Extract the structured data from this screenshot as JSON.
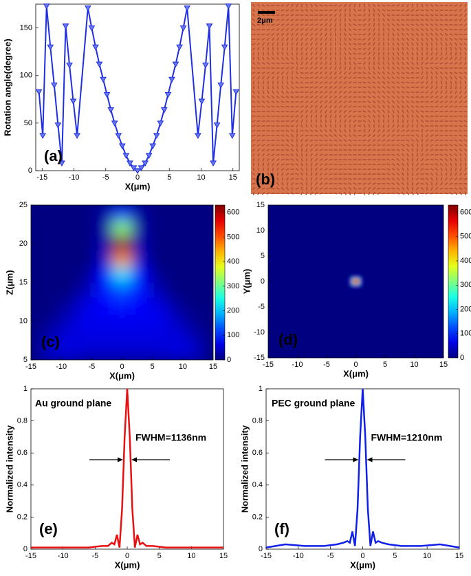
{
  "chart_data": [
    {
      "type": "line",
      "panel_label": "(a)",
      "xlabel": "X(μm)",
      "ylabel": "Rotation angle(degree)",
      "x": [
        -15.5,
        -14.9,
        -14.3,
        -13.7,
        -13.1,
        -12.5,
        -11.9,
        -11.3,
        -10.7,
        -10.1,
        -9.5,
        -7.8,
        -7.2,
        -6.6,
        -6,
        -5.4,
        -4.8,
        -4.2,
        -3.6,
        -3,
        -2.4,
        -1.8,
        -1.2,
        -0.6,
        0,
        0.6,
        1.2,
        1.8,
        2.4,
        3,
        3.6,
        4.2,
        4.8,
        5.4,
        6,
        6.6,
        7.2,
        7.8,
        9.5,
        10.1,
        10.7,
        11.3,
        11.9,
        12.5,
        13.1,
        13.7,
        14.3,
        14.9,
        15.5
      ],
      "series": [
        {
          "color": "#1f2fe0",
          "marker": "triangle-down",
          "values": [
            83,
            37,
            173,
            130,
            90,
            48,
            8,
            152,
            111,
            73,
            37,
            171,
            150,
            130,
            112,
            96,
            80,
            64,
            50,
            37,
            26,
            16,
            8,
            3,
            0,
            3,
            8,
            16,
            26,
            37,
            50,
            64,
            80,
            96,
            112,
            130,
            150,
            171,
            37,
            73,
            111,
            152,
            8,
            48,
            90,
            130,
            173,
            37,
            83
          ]
        }
      ],
      "xlim": [
        -16,
        16
      ],
      "ylim": [
        0,
        175
      ],
      "xticks": [
        -15,
        -10,
        -5,
        0,
        5,
        10,
        15
      ],
      "yticks": [
        0,
        50,
        100,
        150
      ]
    },
    {
      "type": "image",
      "panel_label": "(b)",
      "scale_bar": "2μm"
    },
    {
      "type": "heatmap",
      "panel_label": "(c)",
      "xlabel": "X(μm)",
      "ylabel": "Z(μm)",
      "x": [
        -12,
        -9,
        -6,
        -3,
        0,
        3,
        6,
        9,
        12
      ],
      "y": [
        24,
        22,
        20,
        18,
        16,
        14,
        12,
        10,
        8,
        6
      ],
      "z": [
        [
          0,
          0,
          0,
          20,
          120,
          20,
          0,
          0,
          0
        ],
        [
          0,
          0,
          0,
          20,
          320,
          20,
          0,
          0,
          0
        ],
        [
          0,
          0,
          0,
          30,
          620,
          30,
          0,
          0,
          0
        ],
        [
          0,
          0,
          0,
          40,
          460,
          40,
          0,
          0,
          0
        ],
        [
          0,
          0,
          10,
          80,
          220,
          80,
          10,
          0,
          0
        ],
        [
          0,
          0,
          30,
          90,
          130,
          90,
          30,
          0,
          0
        ],
        [
          0,
          20,
          60,
          80,
          90,
          80,
          60,
          20,
          0
        ],
        [
          10,
          40,
          70,
          70,
          70,
          70,
          70,
          40,
          10
        ],
        [
          30,
          60,
          60,
          60,
          60,
          60,
          60,
          60,
          30
        ],
        [
          50,
          60,
          50,
          50,
          50,
          50,
          50,
          60,
          50
        ]
      ],
      "xlim": [
        -15,
        15
      ],
      "ylim": [
        5,
        25
      ],
      "xticks": [
        -15,
        -10,
        -5,
        0,
        5,
        10,
        15
      ],
      "yticks": [
        5,
        10,
        15,
        20,
        25
      ],
      "clim": [
        0,
        630
      ],
      "cticks": [
        0,
        100,
        200,
        300,
        400,
        500,
        600
      ]
    },
    {
      "type": "heatmap",
      "panel_label": "(d)",
      "xlabel": "X(μm)",
      "ylabel": "Y(μm)",
      "x": [
        -1,
        -0.5,
        0,
        0.5,
        1
      ],
      "y": [
        1,
        0.5,
        0,
        -0.5,
        -1
      ],
      "z": [
        [
          0,
          20,
          60,
          20,
          0
        ],
        [
          20,
          200,
          450,
          200,
          20
        ],
        [
          60,
          450,
          630,
          450,
          60
        ],
        [
          20,
          200,
          450,
          200,
          20
        ],
        [
          0,
          20,
          60,
          20,
          0
        ]
      ],
      "xlim": [
        -15,
        15
      ],
      "ylim": [
        -15,
        15
      ],
      "xticks": [
        -15,
        -10,
        -5,
        0,
        5,
        10,
        15
      ],
      "yticks": [
        -15,
        -10,
        -5,
        0,
        5,
        10,
        15
      ],
      "clim": [
        0,
        630
      ],
      "cticks": [
        0,
        100,
        200,
        300,
        400,
        500,
        600
      ]
    },
    {
      "type": "line",
      "panel_label": "(e)",
      "xlabel": "X(μm)",
      "ylabel": "Normalized intensity",
      "annotations": [
        "Au ground plane",
        "FWHM=1136nm"
      ],
      "x": [
        -15,
        -12,
        -9,
        -6,
        -4,
        -3,
        -2.4,
        -2,
        -1.6,
        -1.2,
        -0.8,
        -0.4,
        0,
        0.4,
        0.8,
        1.2,
        1.6,
        2,
        2.4,
        3,
        4,
        6,
        9,
        12,
        15
      ],
      "series": [
        {
          "color": "#e81010",
          "values": [
            0.01,
            0.01,
            0.01,
            0.01,
            0.02,
            0.02,
            0.04,
            0.03,
            0.09,
            0.01,
            0.25,
            0.7,
            1,
            0.7,
            0.25,
            0.01,
            0.09,
            0.03,
            0.04,
            0.02,
            0.02,
            0.01,
            0.01,
            0.01,
            0.01
          ]
        }
      ],
      "xlim": [
        -15,
        15
      ],
      "ylim": [
        0,
        1
      ],
      "xticks": [
        -15,
        -10,
        -5,
        0,
        5,
        10,
        15
      ],
      "yticks": [
        0,
        0.2,
        0.4,
        0.6,
        0.8,
        1
      ]
    },
    {
      "type": "line",
      "panel_label": "(f)",
      "xlabel": "X(μm)",
      "ylabel": "Normalized intensity",
      "annotations": [
        "PEC ground plane",
        "FWHM=1210nm"
      ],
      "x": [
        -15,
        -12,
        -9,
        -6,
        -4,
        -3,
        -2.4,
        -2,
        -1.6,
        -1.2,
        -0.8,
        -0.4,
        0,
        0.4,
        0.8,
        1.2,
        1.6,
        2,
        2.4,
        3,
        4,
        6,
        9,
        12,
        15
      ],
      "series": [
        {
          "color": "#1020e8",
          "values": [
            0.01,
            0.03,
            0.02,
            0.02,
            0.03,
            0.04,
            0.05,
            0.04,
            0.11,
            0.02,
            0.25,
            0.7,
            1,
            0.7,
            0.25,
            0.02,
            0.11,
            0.04,
            0.05,
            0.04,
            0.03,
            0.02,
            0.02,
            0.03,
            0.01
          ]
        }
      ],
      "xlim": [
        -15,
        15
      ],
      "ylim": [
        0,
        1
      ],
      "xticks": [
        -15,
        -10,
        -5,
        0,
        5,
        10,
        15
      ],
      "yticks": [
        0,
        0.2,
        0.4,
        0.6,
        0.8,
        1
      ]
    }
  ]
}
